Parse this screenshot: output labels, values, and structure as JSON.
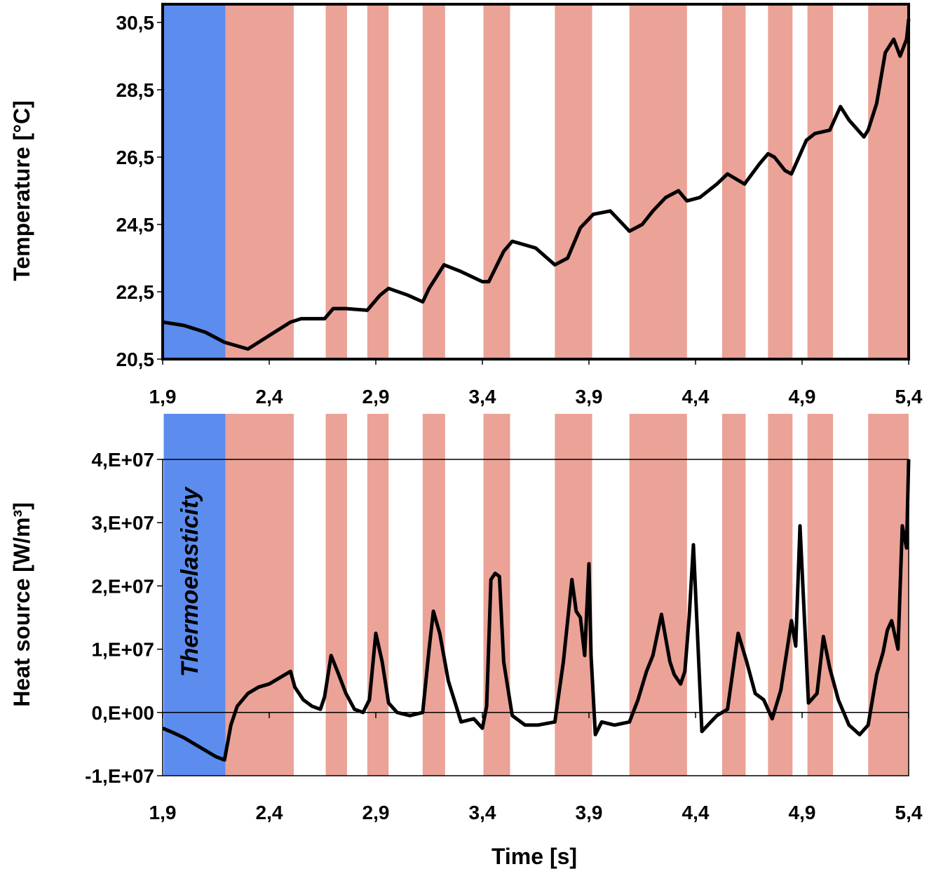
{
  "colors": {
    "elastic_band": "#5b8cee",
    "dissipation_band": "#eba297",
    "line": "#000000",
    "background": "#ffffff"
  },
  "chart_data": [
    {
      "type": "line",
      "title": "",
      "xlabel": "",
      "ylabel": "Temperature [°C]",
      "xlim": [
        1.9,
        5.4
      ],
      "ylim": [
        20.5,
        30.5
      ],
      "x_ticks": [
        "1,9",
        "2,4",
        "2,9",
        "3,4",
        "3,9",
        "4,4",
        "4,9",
        "5,4"
      ],
      "y_ticks": [
        "20,5",
        "22,5",
        "24,5",
        "26,5",
        "28,5",
        "30,5"
      ],
      "grid": false,
      "shaded_regions": [
        {
          "kind": "thermoelastic",
          "x": [
            1.905,
            2.195
          ]
        },
        {
          "kind": "dissipative",
          "x": [
            2.195,
            2.515
          ]
        },
        {
          "kind": "dissipative",
          "x": [
            2.665,
            2.765
          ]
        },
        {
          "kind": "dissipative",
          "x": [
            2.86,
            2.96
          ]
        },
        {
          "kind": "dissipative",
          "x": [
            3.12,
            3.225
          ]
        },
        {
          "kind": "dissipative",
          "x": [
            3.405,
            3.53
          ]
        },
        {
          "kind": "dissipative",
          "x": [
            3.74,
            3.915
          ]
        },
        {
          "kind": "dissipative",
          "x": [
            4.09,
            4.36
          ]
        },
        {
          "kind": "dissipative",
          "x": [
            4.525,
            4.635
          ]
        },
        {
          "kind": "dissipative",
          "x": [
            4.74,
            4.855
          ]
        },
        {
          "kind": "dissipative",
          "x": [
            4.925,
            5.045
          ]
        },
        {
          "kind": "dissipative",
          "x": [
            5.21,
            5.4
          ]
        }
      ],
      "series": [
        {
          "x": [
            1.9,
            2.0,
            2.1,
            2.19,
            2.3,
            2.4,
            2.5,
            2.55,
            2.66,
            2.7,
            2.76,
            2.86,
            2.92,
            2.96,
            3.05,
            3.12,
            3.15,
            3.22,
            3.3,
            3.4,
            3.43,
            3.5,
            3.54,
            3.65,
            3.74,
            3.8,
            3.86,
            3.92,
            4.0,
            4.09,
            4.15,
            4.2,
            4.26,
            4.32,
            4.36,
            4.42,
            4.5,
            4.55,
            4.63,
            4.7,
            4.74,
            4.77,
            4.82,
            4.85,
            4.92,
            4.96,
            5.03,
            5.08,
            5.12,
            5.19,
            5.21,
            5.25,
            5.29,
            5.33,
            5.36,
            5.39,
            5.4
          ],
          "y": [
            21.6,
            21.5,
            21.3,
            21.0,
            20.8,
            21.2,
            21.6,
            21.7,
            21.7,
            22.0,
            22.0,
            21.95,
            22.4,
            22.6,
            22.4,
            22.2,
            22.6,
            23.3,
            23.1,
            22.8,
            22.8,
            23.7,
            24.0,
            23.8,
            23.3,
            23.5,
            24.4,
            24.8,
            24.9,
            24.3,
            24.5,
            24.9,
            25.3,
            25.5,
            25.2,
            25.3,
            25.7,
            26.0,
            25.7,
            26.3,
            26.6,
            26.5,
            26.1,
            26.0,
            27.0,
            27.2,
            27.3,
            28.0,
            27.6,
            27.1,
            27.3,
            28.1,
            29.6,
            30.0,
            29.5,
            30.0,
            30.6
          ]
        }
      ]
    },
    {
      "type": "line",
      "title": "",
      "xlabel": "Time [s]",
      "ylabel": "Heat source [W/m³]",
      "xlim": [
        1.9,
        5.4
      ],
      "ylim": [
        -10000000,
        40000000
      ],
      "x_ticks": [
        "1,9",
        "2,4",
        "2,9",
        "3,4",
        "3,9",
        "4,4",
        "4,9",
        "5,4"
      ],
      "y_ticks": [
        "-1,E+07",
        "0,E+00",
        "1,E+07",
        "2,E+07",
        "3,E+07",
        "4,E+07"
      ],
      "grid": false,
      "annotations": [
        "Thermoelasticity"
      ],
      "shaded_regions": [
        {
          "kind": "thermoelastic",
          "x": [
            1.905,
            2.195
          ]
        },
        {
          "kind": "dissipative",
          "x": [
            2.195,
            2.515
          ]
        },
        {
          "kind": "dissipative",
          "x": [
            2.665,
            2.765
          ]
        },
        {
          "kind": "dissipative",
          "x": [
            2.86,
            2.96
          ]
        },
        {
          "kind": "dissipative",
          "x": [
            3.12,
            3.225
          ]
        },
        {
          "kind": "dissipative",
          "x": [
            3.405,
            3.53
          ]
        },
        {
          "kind": "dissipative",
          "x": [
            3.74,
            3.915
          ]
        },
        {
          "kind": "dissipative",
          "x": [
            4.09,
            4.36
          ]
        },
        {
          "kind": "dissipative",
          "x": [
            4.525,
            4.635
          ]
        },
        {
          "kind": "dissipative",
          "x": [
            4.74,
            4.855
          ]
        },
        {
          "kind": "dissipative",
          "x": [
            4.925,
            5.045
          ]
        },
        {
          "kind": "dissipative",
          "x": [
            5.21,
            5.4
          ]
        }
      ],
      "series": [
        {
          "x": [
            1.9,
            1.95,
            2.0,
            2.05,
            2.1,
            2.15,
            2.19,
            2.22,
            2.25,
            2.3,
            2.35,
            2.4,
            2.45,
            2.5,
            2.52,
            2.56,
            2.6,
            2.64,
            2.66,
            2.69,
            2.72,
            2.76,
            2.8,
            2.84,
            2.87,
            2.9,
            2.93,
            2.96,
            3.0,
            3.06,
            3.12,
            3.15,
            3.17,
            3.2,
            3.24,
            3.3,
            3.36,
            3.4,
            3.42,
            3.44,
            3.46,
            3.48,
            3.5,
            3.54,
            3.6,
            3.66,
            3.74,
            3.78,
            3.82,
            3.84,
            3.86,
            3.88,
            3.9,
            3.91,
            3.93,
            3.96,
            4.02,
            4.09,
            4.13,
            4.17,
            4.2,
            4.24,
            4.28,
            4.3,
            4.33,
            4.35,
            4.37,
            4.39,
            4.43,
            4.5,
            4.55,
            4.6,
            4.64,
            4.68,
            4.72,
            4.76,
            4.8,
            4.83,
            4.85,
            4.87,
            4.89,
            4.93,
            4.97,
            5.0,
            5.03,
            5.07,
            5.12,
            5.17,
            5.21,
            5.25,
            5.28,
            5.3,
            5.32,
            5.35,
            5.37,
            5.39,
            5.4
          ],
          "y": [
            -2500000,
            -3200000,
            -4000000,
            -5000000,
            -6000000,
            -7000000,
            -7500000,
            -2000000,
            1000000,
            3000000,
            4000000,
            4500000,
            5500000,
            6500000,
            4000000,
            2000000,
            1000000,
            500000,
            2500000,
            9000000,
            6500000,
            3000000,
            500000,
            0,
            2000000,
            12500000,
            8000000,
            1500000,
            0,
            -500000,
            0,
            10000000,
            16000000,
            12500000,
            5000000,
            -1500000,
            -1000000,
            -2500000,
            1000000,
            21000000,
            22000000,
            21500000,
            8000000,
            -500000,
            -2000000,
            -2000000,
            -1500000,
            8000000,
            21000000,
            16000000,
            15000000,
            9000000,
            23500000,
            9000000,
            -3500000,
            -1500000,
            -2000000,
            -1500000,
            2000000,
            6500000,
            9000000,
            15500000,
            8000000,
            6000000,
            4500000,
            6500000,
            15000000,
            26500000,
            -3000000,
            -500000,
            500000,
            12500000,
            8000000,
            3000000,
            2000000,
            -1000000,
            3500000,
            10000000,
            14500000,
            10500000,
            29500000,
            1500000,
            3000000,
            12000000,
            7000000,
            2000000,
            -2000000,
            -3500000,
            -2000000,
            6000000,
            9500000,
            13000000,
            14500000,
            10000000,
            29500000,
            26000000,
            40000000
          ]
        }
      ]
    }
  ]
}
